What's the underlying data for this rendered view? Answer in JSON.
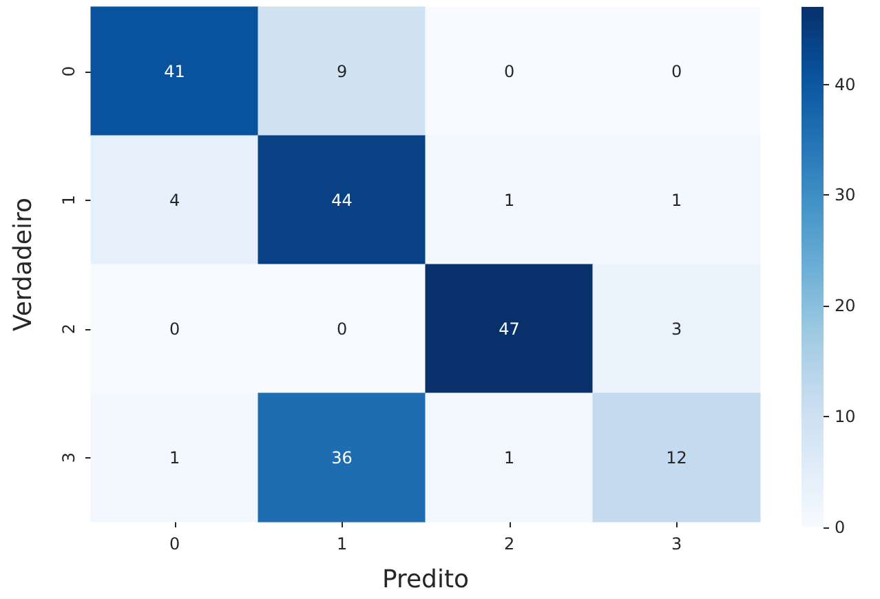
{
  "chart_data": {
    "type": "heatmap",
    "xlabel": "Predito",
    "ylabel": "Verdadeiro",
    "categories": [
      "0",
      "1",
      "2",
      "3"
    ],
    "y_categories": [
      "0",
      "1",
      "2",
      "3"
    ],
    "cells": [
      [
        41,
        9,
        0,
        0
      ],
      [
        4,
        44,
        1,
        1
      ],
      [
        0,
        0,
        47,
        3
      ],
      [
        1,
        36,
        1,
        12
      ]
    ],
    "data_labels": true,
    "clim": [
      0,
      47
    ],
    "cticks": [
      0,
      10,
      20,
      30,
      40
    ]
  }
}
